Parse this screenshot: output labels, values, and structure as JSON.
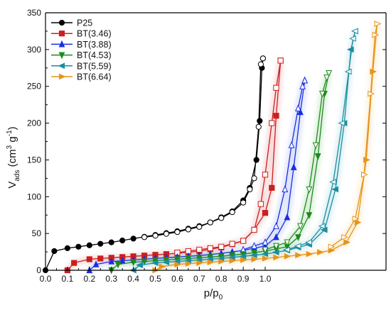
{
  "chart_data": {
    "type": "line",
    "xlabel": "p/p0",
    "ylabel": "Vads (cm3 g-1)",
    "xlim": [
      0.0,
      1.0
    ],
    "ylim": [
      0,
      350
    ],
    "x_ticks": [
      "0.0",
      "0.1",
      "0.2",
      "0.3",
      "0.4",
      "0.5",
      "0.6",
      "0.7",
      "0.8",
      "0.9",
      "1.0"
    ],
    "y_ticks": [
      "0",
      "50",
      "100",
      "150",
      "200",
      "250",
      "300",
      "350"
    ],
    "legend_position": "top-left",
    "offset_note": "Isotherms are horizontally offset; curves start at shifted origins",
    "series": [
      {
        "name": "P25",
        "color": "#000000",
        "marker": "circle",
        "adsorption": [
          [
            0.0,
            0
          ],
          [
            0.04,
            26
          ],
          [
            0.1,
            30
          ],
          [
            0.2,
            34
          ],
          [
            0.3,
            38
          ],
          [
            0.4,
            43
          ],
          [
            0.5,
            48
          ],
          [
            0.6,
            53
          ],
          [
            0.7,
            60
          ],
          [
            0.75,
            65
          ],
          [
            0.8,
            72
          ],
          [
            0.85,
            80
          ],
          [
            0.9,
            95
          ],
          [
            0.93,
            112
          ],
          [
            0.96,
            150
          ],
          [
            0.975,
            203
          ],
          [
            0.985,
            275
          ],
          [
            0.99,
            288
          ]
        ],
        "desorption": [
          [
            0.99,
            288
          ],
          [
            0.98,
            280
          ],
          [
            0.97,
            195
          ],
          [
            0.95,
            125
          ],
          [
            0.93,
            110
          ],
          [
            0.9,
            92
          ],
          [
            0.85,
            79
          ],
          [
            0.8,
            71
          ],
          [
            0.7,
            59
          ],
          [
            0.6,
            52
          ],
          [
            0.5,
            47
          ],
          [
            0.45,
            45
          ]
        ]
      },
      {
        "name": "BT(3.46)",
        "color": "#cc1f1f",
        "marker": "square",
        "adsorption": [
          [
            0.1,
            0
          ],
          [
            0.13,
            10
          ],
          [
            0.2,
            15
          ],
          [
            0.3,
            17
          ],
          [
            0.4,
            19
          ],
          [
            0.5,
            21
          ],
          [
            0.6,
            23
          ],
          [
            0.7,
            26
          ],
          [
            0.8,
            31
          ],
          [
            0.9,
            40
          ],
          [
            0.95,
            55
          ],
          [
            1.0,
            78
          ],
          [
            1.03,
            112
          ],
          [
            1.05,
            210
          ],
          [
            1.07,
            285
          ]
        ],
        "desorption": [
          [
            1.07,
            285
          ],
          [
            1.05,
            248
          ],
          [
            1.03,
            200
          ],
          [
            1.0,
            130
          ],
          [
            0.98,
            90
          ],
          [
            0.95,
            55
          ],
          [
            0.9,
            40
          ],
          [
            0.8,
            32
          ],
          [
            0.6,
            24
          ]
        ]
      },
      {
        "name": "BT(3.88)",
        "color": "#1a2fe0",
        "marker": "triangle-up",
        "adsorption": [
          [
            0.2,
            0
          ],
          [
            0.23,
            8
          ],
          [
            0.3,
            12
          ],
          [
            0.4,
            14
          ],
          [
            0.5,
            16
          ],
          [
            0.6,
            18
          ],
          [
            0.7,
            20
          ],
          [
            0.8,
            23
          ],
          [
            0.9,
            27
          ],
          [
            1.0,
            33
          ],
          [
            1.05,
            45
          ],
          [
            1.1,
            72
          ],
          [
            1.13,
            140
          ],
          [
            1.16,
            215
          ],
          [
            1.18,
            258
          ]
        ],
        "desorption": [
          [
            1.18,
            258
          ],
          [
            1.17,
            250
          ],
          [
            1.15,
            220
          ],
          [
            1.12,
            170
          ],
          [
            1.09,
            110
          ],
          [
            1.05,
            60
          ],
          [
            1.0,
            38
          ],
          [
            0.9,
            28
          ]
        ]
      },
      {
        "name": "BT(4.53)",
        "color": "#1d8a1d",
        "marker": "triangle-down",
        "adsorption": [
          [
            0.3,
            0
          ],
          [
            0.33,
            8
          ],
          [
            0.4,
            11
          ],
          [
            0.5,
            13
          ],
          [
            0.6,
            15
          ],
          [
            0.7,
            17
          ],
          [
            0.8,
            19
          ],
          [
            0.9,
            22
          ],
          [
            1.0,
            26
          ],
          [
            1.1,
            32
          ],
          [
            1.15,
            45
          ],
          [
            1.2,
            75
          ],
          [
            1.24,
            155
          ],
          [
            1.27,
            240
          ],
          [
            1.29,
            268
          ]
        ],
        "desorption": [
          [
            1.29,
            268
          ],
          [
            1.28,
            262
          ],
          [
            1.26,
            240
          ],
          [
            1.23,
            170
          ],
          [
            1.2,
            110
          ],
          [
            1.16,
            60
          ],
          [
            1.1,
            38
          ],
          [
            1.0,
            28
          ]
        ]
      },
      {
        "name": "BT(5.59)",
        "color": "#1a8ea0",
        "marker": "triangle-left",
        "adsorption": [
          [
            0.4,
            0
          ],
          [
            0.43,
            7
          ],
          [
            0.5,
            10
          ],
          [
            0.6,
            12
          ],
          [
            0.7,
            14
          ],
          [
            0.8,
            16
          ],
          [
            0.9,
            19
          ],
          [
            1.0,
            22
          ],
          [
            1.1,
            27
          ],
          [
            1.2,
            35
          ],
          [
            1.27,
            55
          ],
          [
            1.32,
            110
          ],
          [
            1.36,
            200
          ],
          [
            1.39,
            300
          ],
          [
            1.41,
            325
          ]
        ],
        "desorption": [
          [
            1.41,
            325
          ],
          [
            1.4,
            315
          ],
          [
            1.38,
            270
          ],
          [
            1.35,
            200
          ],
          [
            1.31,
            120
          ],
          [
            1.26,
            60
          ],
          [
            1.2,
            38
          ],
          [
            1.1,
            28
          ]
        ]
      },
      {
        "name": "BT(6.64)",
        "color": "#e8941a",
        "marker": "triangle-right",
        "adsorption": [
          [
            0.5,
            0
          ],
          [
            0.53,
            5
          ],
          [
            0.6,
            8
          ],
          [
            0.7,
            10
          ],
          [
            0.8,
            12
          ],
          [
            0.9,
            14
          ],
          [
            1.0,
            16
          ],
          [
            1.1,
            19
          ],
          [
            1.2,
            22
          ],
          [
            1.3,
            27
          ],
          [
            1.37,
            38
          ],
          [
            1.42,
            65
          ],
          [
            1.46,
            150
          ],
          [
            1.49,
            270
          ],
          [
            1.51,
            335
          ]
        ],
        "desorption": [
          [
            1.51,
            335
          ],
          [
            1.5,
            320
          ],
          [
            1.48,
            240
          ],
          [
            1.45,
            130
          ],
          [
            1.41,
            70
          ],
          [
            1.36,
            45
          ],
          [
            1.3,
            32
          ]
        ]
      }
    ]
  }
}
